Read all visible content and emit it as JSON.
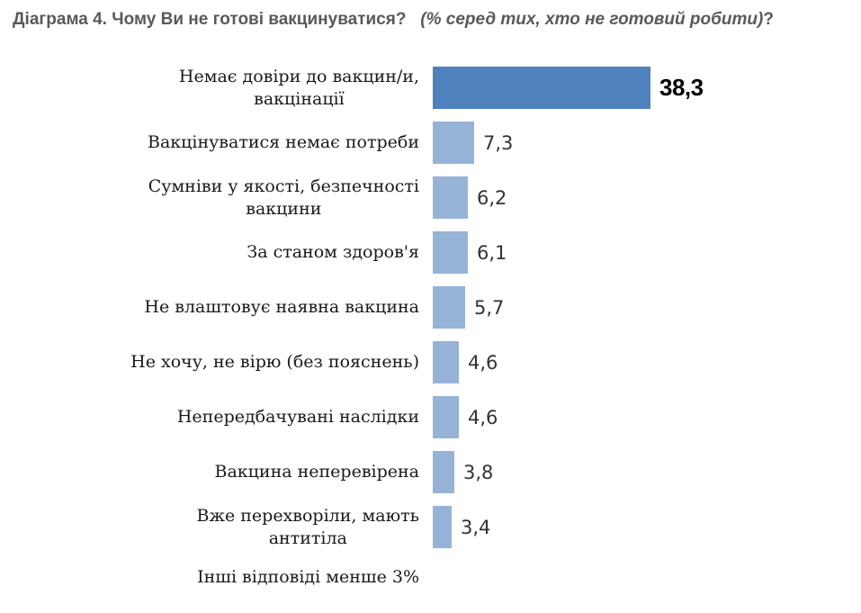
{
  "title": {
    "main": "Діаграма 4. Чому Ви не готові вакцинуватися?",
    "note_italic": "(% серед тих, хто не готовий робити)",
    "suffix": "?"
  },
  "chart_data": {
    "type": "bar",
    "orientation": "horizontal",
    "title": "Діаграма 4. Чому Ви не готові вакцинуватися? (% серед тих, хто не готовий робити)?",
    "categories": [
      "Немає довіри до вакцин/и,\nвакцінації",
      "Вакцінуватися немає потреби",
      "Сумніви у якості, безпечності\nвакцини",
      "За станом здоров'я",
      "Не влаштовує наявна вакцина",
      "Не хочу, не вірю (без пояснень)",
      "Непередбачувані наслідки",
      "Вакцина неперевірена",
      "Вже перехворіли, мають\nантитіла"
    ],
    "values": [
      38.3,
      7.3,
      6.2,
      6.1,
      5.7,
      4.6,
      4.6,
      3.8,
      3.4
    ],
    "value_labels": [
      "38,3",
      "7,3",
      "6,2",
      "6,1",
      "5,7",
      "4,6",
      "4,6",
      "3,8",
      "3,4"
    ],
    "xlim": [
      0,
      40
    ],
    "grid": false,
    "legend": false,
    "data_labels_position": "outside-end",
    "colors": {
      "primary_bar": "#4f81bd",
      "secondary_bar": "#95b3d7",
      "title_text": "#595959",
      "label_text": "#1a1a1a",
      "value_text": "#333333",
      "primary_value_text": "#000000"
    },
    "footnote": "Інші відповіді менше 3%"
  }
}
